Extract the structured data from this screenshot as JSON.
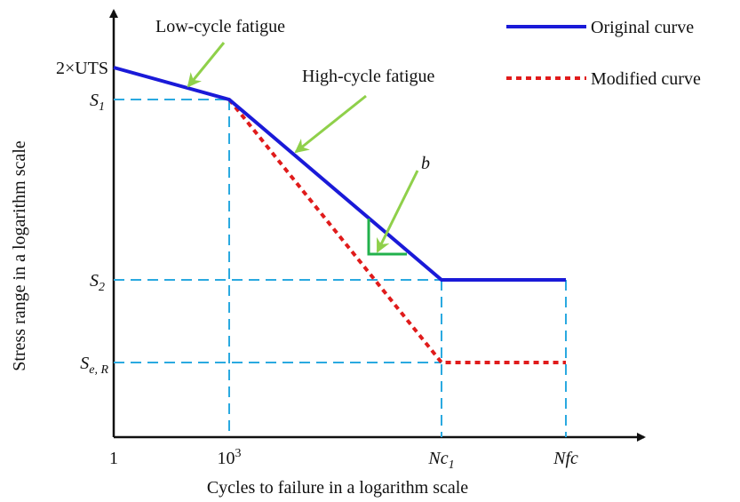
{
  "title": null,
  "annotations": {
    "low_cycle": "Low-cycle fatigue",
    "high_cycle": "High-cycle fatigue",
    "slope": "b"
  },
  "legend": {
    "original": "Original curve",
    "modified": "Modified curve"
  },
  "y_axis": {
    "label": "Stress range in a logarithm scale",
    "ticks": [
      {
        "text": "2×UTS"
      },
      {
        "base": "S",
        "sub": "1"
      },
      {
        "base": "S",
        "sub": "2"
      },
      {
        "base": "S",
        "sub": "e, R"
      }
    ]
  },
  "x_axis": {
    "label": "Cycles to failure in a logarithm scale",
    "ticks": [
      {
        "text": "1"
      },
      {
        "base": "10",
        "sup": "3"
      },
      {
        "base": "Nc",
        "sub": "1"
      },
      {
        "text": "Nfc"
      }
    ]
  }
}
